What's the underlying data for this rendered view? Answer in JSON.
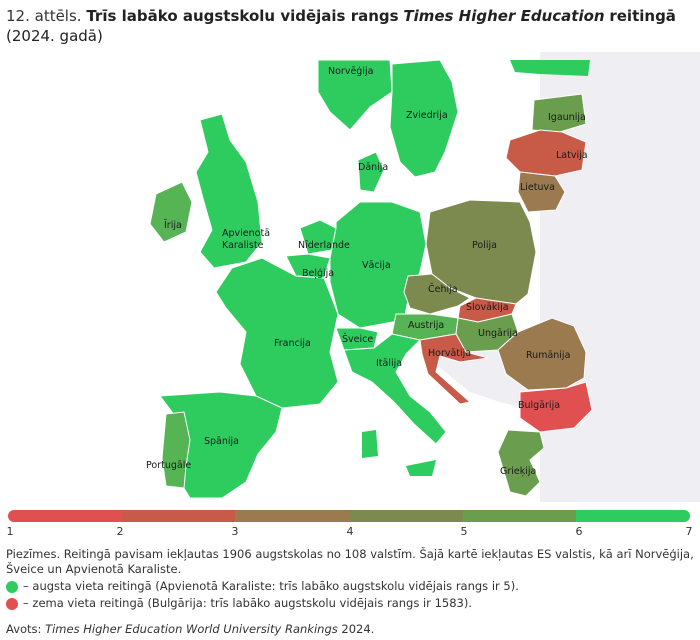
{
  "title": {
    "number": "12. attēls.",
    "bold_part": "Trīs labāko augstskolu vidējais rangs",
    "italic_part": "Times Higher Education",
    "bold_part2": "reitingā",
    "year_part": "(2024. gadā)"
  },
  "map": {
    "countries": [
      {
        "name": "Norvēģija",
        "value": 7,
        "color": "#2ecc5e"
      },
      {
        "name": "Zviedrija",
        "value": 7,
        "color": "#2ecc5e"
      },
      {
        "name": "Dānija",
        "value": 7,
        "color": "#2ecc5e"
      },
      {
        "name": "Igaunija",
        "value": 5,
        "color": "#6a9e4e"
      },
      {
        "name": "Latvija",
        "value": 2,
        "color": "#c85a48"
      },
      {
        "name": "Lietuva",
        "value": 3,
        "color": "#9a7a4e"
      },
      {
        "name": "Īrija",
        "value": 6,
        "color": "#56b455"
      },
      {
        "name": "Apvienotā Karaliste",
        "value": 7,
        "color": "#2ecc5e"
      },
      {
        "name": "Nīderlande",
        "value": 7,
        "color": "#2ecc5e"
      },
      {
        "name": "Beļģija",
        "value": 7,
        "color": "#2ecc5e"
      },
      {
        "name": "Vācija",
        "value": 7,
        "color": "#2ecc5e"
      },
      {
        "name": "Polija",
        "value": 4,
        "color": "#7c8a50"
      },
      {
        "name": "Čehija",
        "value": 4,
        "color": "#7c8a50"
      },
      {
        "name": "Slovākija",
        "value": 2,
        "color": "#c85a48"
      },
      {
        "name": "Austrija",
        "value": 6,
        "color": "#56b455"
      },
      {
        "name": "Ungārija",
        "value": 5,
        "color": "#6a9e4e"
      },
      {
        "name": "Francija",
        "value": 7,
        "color": "#2ecc5e"
      },
      {
        "name": "Šveice",
        "value": 7,
        "color": "#2ecc5e"
      },
      {
        "name": "Itālija",
        "value": 7,
        "color": "#2ecc5e"
      },
      {
        "name": "Horvātija",
        "value": 2,
        "color": "#c85a48"
      },
      {
        "name": "Rumānija",
        "value": 3,
        "color": "#9a7a4e"
      },
      {
        "name": "Bulgārija",
        "value": 1,
        "color": "#e05050"
      },
      {
        "name": "Spānija",
        "value": 7,
        "color": "#2ecc5e"
      },
      {
        "name": "Portugāle",
        "value": 6,
        "color": "#56b455"
      },
      {
        "name": "Grieķija",
        "value": 5,
        "color": "#6a9e4e"
      }
    ]
  },
  "scale": {
    "colors": [
      "#e05050",
      "#c85a48",
      "#9a7a4e",
      "#7c8a50",
      "#6a9e4e",
      "#2ecc5e"
    ],
    "ticks": [
      "1",
      "2",
      "3",
      "4",
      "5",
      "6",
      "7"
    ]
  },
  "notes": {
    "text": "Piezīmes. Reitingā pavisam iekļautas 1906 augstskolas no 108 valstīm. Šajā kartē iekļautas ES valstis, kā arī Norvēģija, Šveice un Apvienotā Karaliste.",
    "high": "– augsta vieta reitingā (Apvienotā Karaliste: trīs labāko augstskolu vidējais rangs ir 5).",
    "low": "– zema vieta reitingā (Bulgārija: trīs labāko augstskolu vidējais rangs ir 1583).",
    "high_color": "#2ecc5e",
    "low_color": "#e05050"
  },
  "source": {
    "prefix": "Avots:",
    "italic": "Times Higher Education World University Rankings",
    "suffix": "2024."
  }
}
